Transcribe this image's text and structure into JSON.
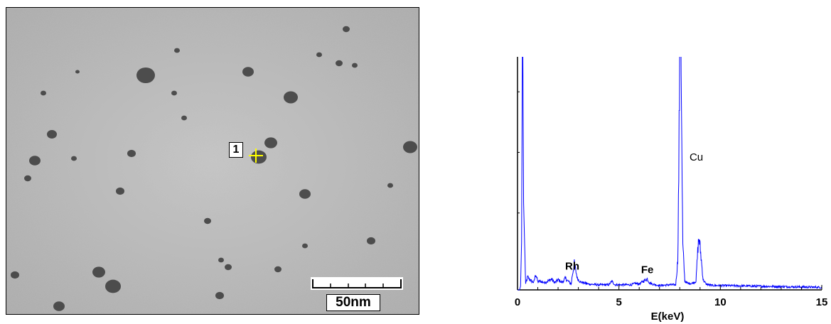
{
  "tem_image": {
    "scale_label": "50nm",
    "point_marker": "1",
    "marker_color": "#ffff00"
  },
  "chart_data": {
    "type": "line",
    "title": "",
    "xlabel": "E(keV)",
    "ylabel": "",
    "xlim": [
      0,
      15
    ],
    "xticks": [
      0,
      5,
      10,
      15
    ],
    "xtick_labels": [
      "0",
      "5",
      "10",
      "15"
    ],
    "grid": false,
    "legend": "none",
    "line_color": "#0000ff",
    "series": [
      {
        "x": [
          0.0,
          0.1,
          0.15,
          0.2,
          0.25,
          0.3,
          0.4,
          0.5,
          0.6,
          0.7,
          0.8,
          0.9,
          1.0,
          1.1,
          1.3,
          1.5,
          1.7,
          1.75,
          1.85,
          2.0,
          2.2,
          2.35,
          2.5,
          2.65,
          2.7,
          2.8,
          2.95,
          3.1,
          3.5,
          4.0,
          4.5,
          4.65,
          4.8,
          5.2,
          5.6,
          5.8,
          6.0,
          6.2,
          6.4,
          6.5,
          6.65,
          7.0,
          7.5,
          7.8,
          7.9,
          7.95,
          8.0,
          8.05,
          8.1,
          8.15,
          8.25,
          8.4,
          8.6,
          8.8,
          8.9,
          8.95,
          9.05,
          9.15,
          9.3,
          9.6,
          10.0,
          11.0,
          12.0,
          13.0,
          14.0,
          15.0
        ],
        "y": [
          0,
          0,
          5,
          65,
          400,
          120,
          8,
          18,
          14,
          12,
          10,
          22,
          11,
          12,
          10,
          12,
          15,
          12,
          10,
          14,
          10,
          16,
          12,
          8,
          20,
          36,
          16,
          11,
          8,
          7,
          7,
          12,
          7,
          7,
          7,
          9,
          8,
          12,
          15,
          10,
          8,
          6,
          7,
          7,
          40,
          160,
          330,
          400,
          190,
          60,
          12,
          9,
          9,
          12,
          60,
          71,
          45,
          14,
          8,
          6,
          6,
          5.5,
          5,
          4.5,
          4,
          3.5
        ]
      }
    ],
    "annotations": [
      {
        "label": "Rh",
        "x": 2.7,
        "bold": true
      },
      {
        "label": "Fe",
        "x": 6.4,
        "bold": true
      },
      {
        "label": "Cu",
        "x": 8.2,
        "bold": false
      }
    ]
  }
}
